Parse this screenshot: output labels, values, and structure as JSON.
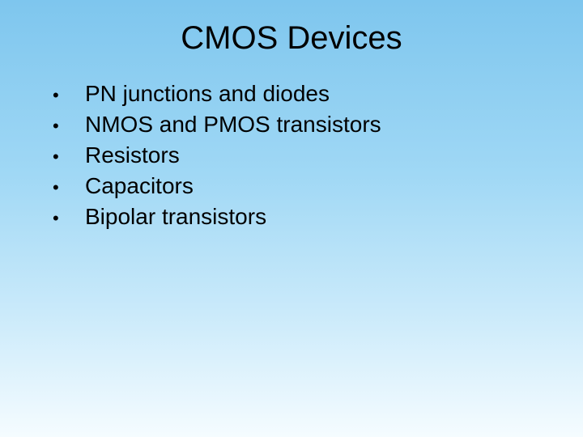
{
  "slide": {
    "title": "CMOS Devices",
    "bullets": [
      "PN junctions and diodes",
      "NMOS and PMOS transistors",
      "Resistors",
      "Capacitors",
      "Bipolar transistors"
    ],
    "styling": {
      "background_gradient": {
        "start": "#7ec6ee",
        "mid1": "#a0d8f5",
        "mid2": "#c8e9fa",
        "end": "#f5fcff"
      },
      "title_fontsize": 40,
      "title_color": "#000000",
      "bullet_fontsize": 28,
      "bullet_color": "#000000",
      "font_family": "Arial"
    }
  }
}
